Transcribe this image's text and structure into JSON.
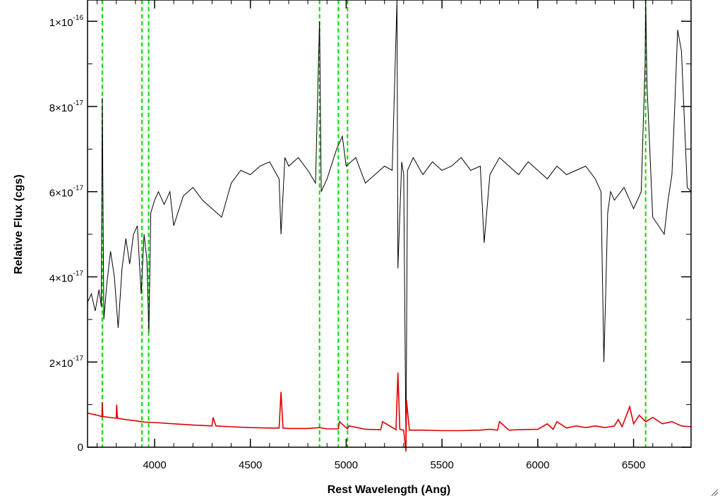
{
  "chart_data": {
    "type": "line",
    "title": "",
    "xlabel": "Rest Wavelength (Ang)",
    "ylabel": "Relative Flux (cgs)",
    "xlim": [
      3650,
      6800
    ],
    "ylim": [
      0,
      1.05e-16
    ],
    "x_ticks": [
      4000,
      4500,
      5000,
      5500,
      6000,
      6500
    ],
    "x_tick_labels": [
      "4000",
      "4500",
      "5000",
      "5500",
      "6000",
      "6500"
    ],
    "y_ticks": [
      0,
      2e-17,
      4e-17,
      6e-17,
      8e-17,
      1e-16
    ],
    "y_tick_labels": [
      {
        "mantissa": "0",
        "exponent": ""
      },
      {
        "mantissa": "2×10",
        "exponent": "-17"
      },
      {
        "mantissa": "4×10",
        "exponent": "-17"
      },
      {
        "mantissa": "6×10",
        "exponent": "-17"
      },
      {
        "mantissa": "8×10",
        "exponent": "-17"
      },
      {
        "mantissa": "1×10",
        "exponent": "-16"
      }
    ],
    "grid": false,
    "legend": "none",
    "vlines": {
      "color": "#00dd00",
      "style": "dashed",
      "x": [
        3727,
        3934,
        3969,
        4861,
        4959,
        5007,
        6563
      ]
    },
    "series": [
      {
        "color": "#000000",
        "x": [
          3650,
          3670,
          3690,
          3710,
          3722,
          3727,
          3735,
          3750,
          3770,
          3790,
          3810,
          3830,
          3850,
          3870,
          3890,
          3910,
          3930,
          3945,
          3960,
          3970,
          3980,
          4000,
          4020,
          4050,
          4080,
          4100,
          4150,
          4200,
          4250,
          4300,
          4350,
          4400,
          4450,
          4500,
          4550,
          4600,
          4650,
          4660,
          4680,
          4700,
          4750,
          4800,
          4840,
          4855,
          4861,
          4870,
          4900,
          4950,
          4980,
          5000,
          5050,
          5100,
          5150,
          5200,
          5240,
          5265,
          5270,
          5290,
          5300,
          5312,
          5320,
          5350,
          5400,
          5450,
          5500,
          5550,
          5600,
          5650,
          5700,
          5720,
          5750,
          5800,
          5850,
          5900,
          5950,
          6000,
          6050,
          6100,
          6150,
          6200,
          6250,
          6300,
          6330,
          6345,
          6355,
          6365,
          6380,
          6400,
          6450,
          6500,
          6540,
          6560,
          6563,
          6570,
          6600,
          6630,
          6660,
          6680,
          6700,
          6715,
          6730,
          6750,
          6780,
          6800
        ],
        "y": [
          3.4e-17,
          3.6e-17,
          3.2e-17,
          3.7e-17,
          3.3e-17,
          8.2e-17,
          3e-17,
          3.8e-17,
          4.6e-17,
          4e-17,
          2.8e-17,
          4.2e-17,
          4.9e-17,
          4.3e-17,
          5e-17,
          5.2e-17,
          3.6e-17,
          5e-17,
          4.4e-17,
          2.7e-17,
          5.5e-17,
          5.8e-17,
          6e-17,
          5.7e-17,
          6e-17,
          5.2e-17,
          5.9e-17,
          6.1e-17,
          5.8e-17,
          5.6e-17,
          5.4e-17,
          6.2e-17,
          6.5e-17,
          6.4e-17,
          6.6e-17,
          6.7e-17,
          6.3e-17,
          5e-17,
          6.8e-17,
          6.6e-17,
          6.8e-17,
          6.5e-17,
          6.2e-17,
          9e-17,
          1e-16,
          6e-17,
          6.3e-17,
          7e-17,
          7.3e-17,
          6.6e-17,
          6.8e-17,
          6.2e-17,
          6.4e-17,
          6.6e-17,
          6.5e-17,
          1.05e-16,
          4.2e-17,
          6.7e-17,
          6.4e-17,
          0.0,
          6.5e-17,
          6.8e-17,
          6.4e-17,
          6.7e-17,
          6.5e-17,
          6.6e-17,
          6.8e-17,
          6.5e-17,
          6.6e-17,
          4.8e-17,
          6.4e-17,
          6.8e-17,
          6.6e-17,
          6.4e-17,
          6.7e-17,
          6.5e-17,
          6.3e-17,
          6.6e-17,
          6.4e-17,
          6.5e-17,
          6.6e-17,
          6.3e-17,
          6e-17,
          2e-17,
          3.7e-17,
          5.5e-17,
          6e-17,
          5.8e-17,
          6.1e-17,
          5.6e-17,
          6e-17,
          9e-17,
          1.05e-16,
          8.5e-17,
          5.4e-17,
          5.2e-17,
          5e-17,
          5.8e-17,
          6.4e-17,
          8e-17,
          9.8e-17,
          9.3e-17,
          6.1e-17,
          6e-17
        ]
      },
      {
        "color": "#dd0000",
        "x": [
          3650,
          3700,
          3725,
          3727,
          3730,
          3800,
          3802,
          3806,
          3850,
          3900,
          3950,
          4000,
          4100,
          4200,
          4300,
          4305,
          4320,
          4400,
          4500,
          4600,
          4650,
          4660,
          4670,
          4700,
          4800,
          4861,
          4900,
          4959,
          4965,
          5007,
          5015,
          5100,
          5180,
          5190,
          5260,
          5270,
          5280,
          5300,
          5312,
          5315,
          5330,
          5400,
          5500,
          5600,
          5700,
          5750,
          5790,
          5800,
          5850,
          5900,
          6000,
          6050,
          6080,
          6100,
          6150,
          6200,
          6250,
          6300,
          6350,
          6400,
          6420,
          6440,
          6480,
          6500,
          6530,
          6563,
          6600,
          6650,
          6700,
          6750,
          6800
        ],
        "y": [
          8e-18,
          7.5e-18,
          7.2e-18,
          1.05e-17,
          7.2e-18,
          6.8e-18,
          1e-17,
          6.8e-18,
          6.5e-18,
          6.2e-18,
          5.9e-18,
          5.8e-18,
          5.5e-18,
          5.2e-18,
          5e-18,
          7e-18,
          5e-18,
          4.8e-18,
          4.6e-18,
          4.5e-18,
          4.5e-18,
          1.3e-17,
          4.5e-18,
          4.4e-18,
          4.4e-18,
          4.6e-18,
          4.3e-18,
          4.3e-18,
          6e-18,
          4.3e-18,
          5e-18,
          4.2e-18,
          4.1e-18,
          6e-18,
          4.1e-18,
          1.75e-17,
          4.2e-18,
          4e-18,
          -1e-18,
          1.1e-17,
          4e-18,
          4e-18,
          3.9e-18,
          3.9e-18,
          4e-18,
          4.2e-18,
          4e-18,
          6e-18,
          4e-18,
          4.1e-18,
          4.2e-18,
          5.5e-18,
          4.2e-18,
          6e-18,
          4.5e-18,
          5e-18,
          4.6e-18,
          5e-18,
          4.6e-18,
          5e-18,
          6.5e-18,
          4.8e-18,
          9.5e-18,
          5.5e-18,
          7.5e-18,
          6e-18,
          7e-18,
          5.5e-18,
          6e-18,
          5e-18,
          4.8e-18
        ]
      }
    ]
  }
}
